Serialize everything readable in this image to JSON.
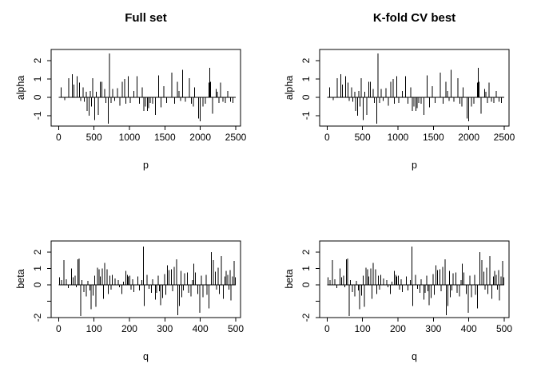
{
  "figure": {
    "background": "#ffffff",
    "foreground": "#000000"
  },
  "chart_data": {
    "type": "bar",
    "layout": "2x2 panel grid, R base graphics spike plots (type=h)",
    "grid": false,
    "legend": "none",
    "series": {
      "alpha": [
        [
          38,
          0.55
        ],
        [
          85,
          -0.15
        ],
        [
          143,
          1.05
        ],
        [
          196,
          1.25
        ],
        [
          219,
          0.7
        ],
        [
          260,
          1.15
        ],
        [
          293,
          0.8
        ],
        [
          310,
          -0.2
        ],
        [
          345,
          0.55
        ],
        [
          362,
          -0.25
        ],
        [
          390,
          0.3
        ],
        [
          402,
          -0.75
        ],
        [
          430,
          -1.0
        ],
        [
          447,
          0.35
        ],
        [
          465,
          -0.5
        ],
        [
          480,
          1.05
        ],
        [
          507,
          -1.25
        ],
        [
          532,
          0.3
        ],
        [
          562,
          -0.95
        ],
        [
          588,
          0.85
        ],
        [
          612,
          0.85
        ],
        [
          648,
          0.45
        ],
        [
          668,
          -0.3
        ],
        [
          700,
          -1.45
        ],
        [
          719,
          2.4
        ],
        [
          742,
          -0.3
        ],
        [
          762,
          0.45
        ],
        [
          790,
          -0.2
        ],
        [
          830,
          0.5
        ],
        [
          866,
          -0.45
        ],
        [
          900,
          0.85
        ],
        [
          930,
          1.0
        ],
        [
          952,
          -0.35
        ],
        [
          982,
          1.15
        ],
        [
          1012,
          -0.3
        ],
        [
          1060,
          0.35
        ],
        [
          1105,
          1.15
        ],
        [
          1140,
          -0.35
        ],
        [
          1180,
          0.55
        ],
        [
          1202,
          -0.75
        ],
        [
          1227,
          -0.5
        ],
        [
          1252,
          -0.75
        ],
        [
          1272,
          -0.6
        ],
        [
          1295,
          -0.3
        ],
        [
          1330,
          -0.35
        ],
        [
          1365,
          -0.95
        ],
        [
          1411,
          1.2
        ],
        [
          1447,
          -0.55
        ],
        [
          1487,
          0.6
        ],
        [
          1522,
          -0.3
        ],
        [
          1600,
          1.35
        ],
        [
          1637,
          -0.35
        ],
        [
          1675,
          0.85
        ],
        [
          1700,
          0.35
        ],
        [
          1722,
          -0.2
        ],
        [
          1752,
          1.5
        ],
        [
          1792,
          -0.25
        ],
        [
          1845,
          1.05
        ],
        [
          1875,
          -0.35
        ],
        [
          1902,
          -0.5
        ],
        [
          1922,
          0.55
        ],
        [
          1976,
          -1.15
        ],
        [
          1998,
          -1.3
        ],
        [
          2037,
          -0.5
        ],
        [
          2074,
          -0.35
        ],
        [
          2120,
          0.8
        ],
        [
          2131,
          1.6
        ],
        [
          2144,
          0.85
        ],
        [
          2172,
          -0.9
        ],
        [
          2224,
          0.45
        ],
        [
          2243,
          0.3
        ],
        [
          2262,
          -0.3
        ],
        [
          2287,
          0.8
        ],
        [
          2320,
          -0.25
        ],
        [
          2356,
          -0.3
        ],
        [
          2390,
          0.35
        ],
        [
          2425,
          -0.25
        ],
        [
          2462,
          -0.3
        ]
      ],
      "beta": [
        [
          3,
          0.45
        ],
        [
          8,
          0.3
        ],
        [
          15,
          1.5
        ],
        [
          22,
          0.35
        ],
        [
          28,
          -0.2
        ],
        [
          36,
          1.0
        ],
        [
          41,
          0.45
        ],
        [
          47,
          0.55
        ],
        [
          50,
          -0.15
        ],
        [
          55,
          1.55
        ],
        [
          58,
          1.6
        ],
        [
          62,
          -1.9
        ],
        [
          66,
          0.3
        ],
        [
          72,
          -0.45
        ],
        [
          78,
          -0.7
        ],
        [
          83,
          0.25
        ],
        [
          88,
          -0.35
        ],
        [
          92,
          -1.5
        ],
        [
          97,
          -0.65
        ],
        [
          102,
          0.55
        ],
        [
          105,
          -1.35
        ],
        [
          110,
          1.05
        ],
        [
          114,
          0.95
        ],
        [
          118,
          0.5
        ],
        [
          123,
          1.0
        ],
        [
          127,
          -0.85
        ],
        [
          130,
          1.35
        ],
        [
          137,
          0.95
        ],
        [
          140,
          -0.55
        ],
        [
          145,
          0.55
        ],
        [
          148,
          -0.3
        ],
        [
          152,
          0.6
        ],
        [
          160,
          0.4
        ],
        [
          168,
          0.3
        ],
        [
          172,
          -0.15
        ],
        [
          179,
          -0.55
        ],
        [
          183,
          0.2
        ],
        [
          190,
          0.85
        ],
        [
          194,
          0.6
        ],
        [
          197,
          0.5
        ],
        [
          201,
          0.55
        ],
        [
          204,
          -0.3
        ],
        [
          209,
          0.35
        ],
        [
          213,
          -0.45
        ],
        [
          224,
          0.5
        ],
        [
          228,
          -0.35
        ],
        [
          235,
          0.3
        ],
        [
          239,
          2.35
        ],
        [
          242,
          -1.3
        ],
        [
          250,
          0.6
        ],
        [
          255,
          -0.25
        ],
        [
          262,
          -0.5
        ],
        [
          266,
          0.35
        ],
        [
          273,
          -0.9
        ],
        [
          277,
          -0.5
        ],
        [
          281,
          0.55
        ],
        [
          285,
          -0.4
        ],
        [
          288,
          -1.25
        ],
        [
          294,
          -0.8
        ],
        [
          299,
          0.65
        ],
        [
          303,
          -0.6
        ],
        [
          307,
          1.2
        ],
        [
          312,
          0.9
        ],
        [
          318,
          0.95
        ],
        [
          322,
          -0.4
        ],
        [
          326,
          1.1
        ],
        [
          333,
          1.55
        ],
        [
          337,
          -1.85
        ],
        [
          341,
          -1.3
        ],
        [
          345,
          0.85
        ],
        [
          348,
          -0.75
        ],
        [
          352,
          -0.35
        ],
        [
          356,
          0.7
        ],
        [
          363,
          0.75
        ],
        [
          367,
          -0.5
        ],
        [
          374,
          -0.7
        ],
        [
          378,
          0.3
        ],
        [
          382,
          1.3
        ],
        [
          386,
          0.75
        ],
        [
          393,
          -0.55
        ],
        [
          399,
          -1.7
        ],
        [
          403,
          0.55
        ],
        [
          407,
          -0.75
        ],
        [
          416,
          0.6
        ],
        [
          419,
          -0.6
        ],
        [
          424,
          -1.45
        ],
        [
          431,
          2.0
        ],
        [
          437,
          1.5
        ],
        [
          443,
          0.8
        ],
        [
          446,
          -0.3
        ],
        [
          450,
          1.05
        ],
        [
          454,
          -0.55
        ],
        [
          459,
          1.75
        ],
        [
          465,
          -0.85
        ],
        [
          469,
          0.5
        ],
        [
          473,
          0.85
        ],
        [
          477,
          0.6
        ],
        [
          481,
          -0.3
        ],
        [
          484,
          0.9
        ],
        [
          487,
          -0.95
        ],
        [
          491,
          0.5
        ],
        [
          495,
          1.45
        ],
        [
          499,
          0.45
        ]
      ]
    },
    "panels": [
      {
        "id": "full-set-alpha",
        "title": "Full set",
        "xlabel": "p",
        "ylabel": "alpha",
        "series": "alpha",
        "xlim": [
          0,
          2500
        ],
        "ylim": [
          -1.57,
          2.61
        ],
        "xticks": [
          0,
          500,
          1000,
          1500,
          2000,
          2500
        ],
        "xtick_labels": [
          "0",
          "500",
          "1000",
          "1500",
          "2000",
          "2500"
        ],
        "yticks": [
          -1,
          0,
          1,
          2
        ],
        "ytick_labels": [
          "-1",
          "0",
          "1",
          "2"
        ]
      },
      {
        "id": "kfold-cv-alpha",
        "title": "K-fold CV best",
        "xlabel": "p",
        "ylabel": "alpha",
        "series": "alpha",
        "xlim": [
          0,
          2500
        ],
        "ylim": [
          -1.57,
          2.61
        ],
        "xticks": [
          0,
          500,
          1000,
          1500,
          2000,
          2500
        ],
        "xtick_labels": [
          "0",
          "500",
          "1000",
          "1500",
          "2000",
          "2500"
        ],
        "yticks": [
          -1,
          0,
          1,
          2
        ],
        "ytick_labels": [
          "-1",
          "0",
          "1",
          "2"
        ]
      },
      {
        "id": "full-set-beta",
        "title": "",
        "xlabel": "q",
        "ylabel": "beta",
        "series": "beta",
        "xlim": [
          0,
          500
        ],
        "ylim": [
          -2.0,
          2.68
        ],
        "xticks": [
          0,
          100,
          200,
          300,
          400,
          500
        ],
        "xtick_labels": [
          "0",
          "100",
          "200",
          "300",
          "400",
          "500"
        ],
        "yticks": [
          -2,
          -1,
          0,
          1,
          2
        ],
        "ytick_labels": [
          "-2",
          "",
          "0",
          "1",
          "2"
        ]
      },
      {
        "id": "kfold-cv-beta",
        "title": "",
        "xlabel": "q",
        "ylabel": "beta",
        "series": "beta",
        "xlim": [
          0,
          500
        ],
        "ylim": [
          -2.0,
          2.68
        ],
        "xticks": [
          0,
          100,
          200,
          300,
          400,
          500
        ],
        "xtick_labels": [
          "0",
          "100",
          "200",
          "300",
          "400",
          "500"
        ],
        "yticks": [
          -2,
          -1,
          0,
          1,
          2
        ],
        "ytick_labels": [
          "-2",
          "",
          "0",
          "1",
          "2"
        ]
      }
    ]
  }
}
